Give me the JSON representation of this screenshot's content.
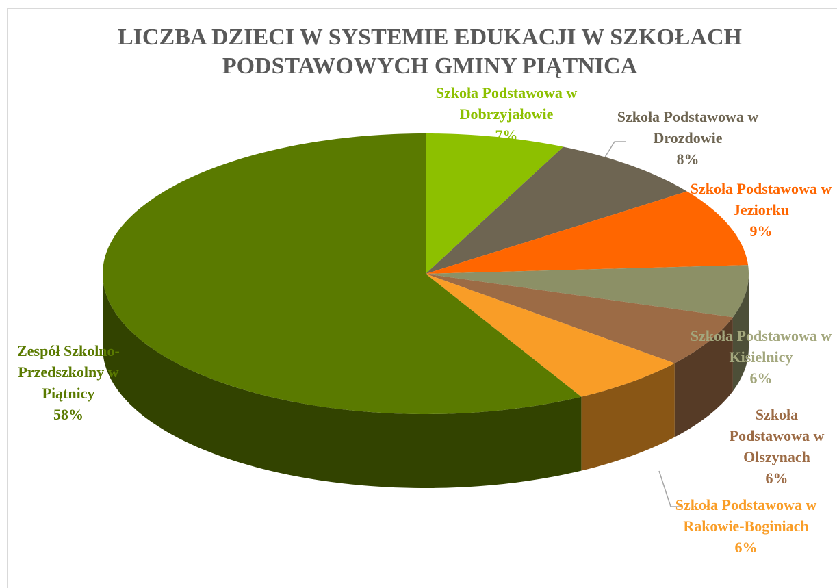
{
  "chart_data": {
    "type": "pie3d",
    "title": "LICZBA DZIECI W SYSTEMIE EDUKACJI W SZKOŁACH PODSTAWOWYCH GMINY PIĄTNICA",
    "categories": [
      "Szkoła Podstawowa w Dobrzyjałowie",
      "Szkoła Podstawowa w Drozdowie",
      "Szkoła Podstawowa w Jeziorku",
      "Szkoła Podstawowa w Kisielnicy",
      "Szkoła Podstawowa w Olszynach",
      "Szkoła Podstawowa w Rakowie-Boginiach",
      "Zespół Szkolno-Przedszkolny w Piątnicy"
    ],
    "values": [
      7,
      8,
      9,
      6,
      6,
      6,
      58
    ],
    "value_labels": [
      "7%",
      "8%",
      "9%",
      "6%",
      "6%",
      "6%",
      "58%"
    ],
    "colors": [
      "#8dc000",
      "#6e6552",
      "#ff6600",
      "#8c9066",
      "#9c6b45",
      "#f99d27",
      "#5a7a00"
    ]
  }
}
